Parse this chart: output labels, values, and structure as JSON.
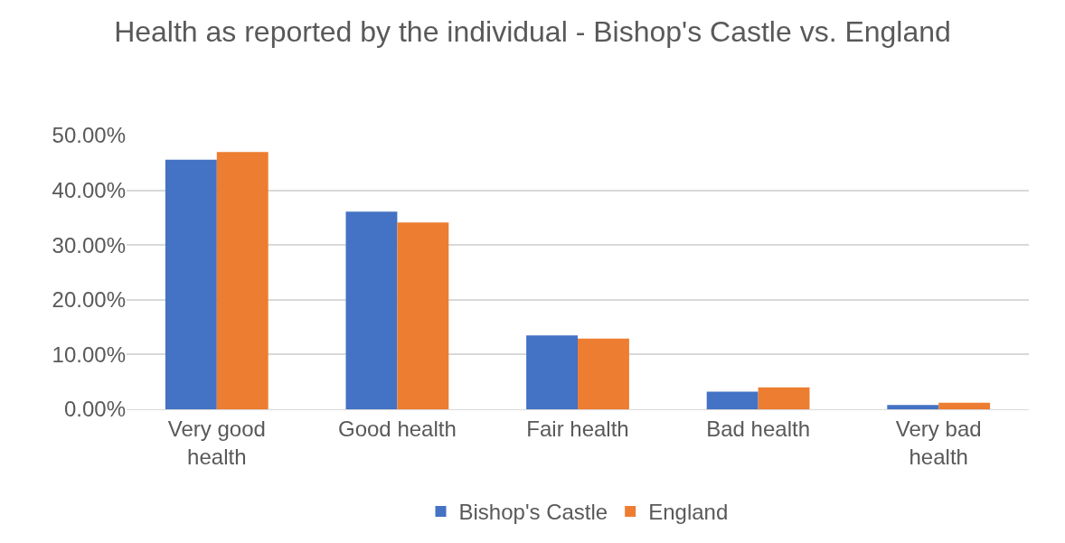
{
  "chart_data": {
    "type": "bar",
    "title": "Health as reported by the individual - Bishop's Castle vs. England",
    "categories": [
      "Very good health",
      "Good health",
      "Fair health",
      "Bad health",
      "Very bad health"
    ],
    "series": [
      {
        "name": "Bishop's Castle",
        "color": "#4472c4",
        "values": [
          45.6,
          36.1,
          13.5,
          3.2,
          0.8
        ]
      },
      {
        "name": "England",
        "color": "#ed7d31",
        "values": [
          47.0,
          34.1,
          12.9,
          4.0,
          1.2
        ]
      }
    ],
    "ylim": [
      0,
      50
    ],
    "yticks": [
      {
        "value": 0,
        "label": "0.00%"
      },
      {
        "value": 10,
        "label": "10.00%"
      },
      {
        "value": 20,
        "label": "20.00%"
      },
      {
        "value": 30,
        "label": "30.00%"
      },
      {
        "value": 40,
        "label": "40.00%"
      },
      {
        "value": 50,
        "label": "50.00%"
      }
    ],
    "grid": "y",
    "legend": "bottom"
  }
}
